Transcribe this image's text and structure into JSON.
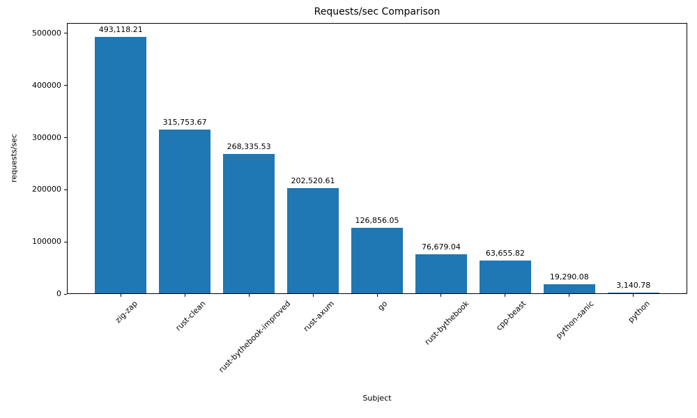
{
  "chart_data": {
    "type": "bar",
    "title": "Requests/sec Comparison",
    "xlabel": "Subject",
    "ylabel": "requests/sec",
    "categories": [
      "zig-zap",
      "rust-clean",
      "rust-bythebook-improved",
      "rust-axum",
      "go",
      "rust-bythebook",
      "cpp-beast",
      "python-sanic",
      "python"
    ],
    "values": [
      493118.21,
      315753.67,
      268335.53,
      202520.61,
      126856.05,
      76679.04,
      63655.82,
      19290.08,
      3140.78
    ],
    "value_labels": [
      "493,118.21",
      "315,753.67",
      "268,335.53",
      "202,520.61",
      "126,856.05",
      "76,679.04",
      "63,655.82",
      "19,290.08",
      "3,140.78"
    ],
    "ylim": [
      0,
      520000
    ],
    "yticks": [
      0,
      100000,
      200000,
      300000,
      400000,
      500000
    ],
    "ytick_labels": [
      "0",
      "100000",
      "200000",
      "300000",
      "400000",
      "500000"
    ],
    "grid": false,
    "legend": "none",
    "bar_color": "#1f77b4",
    "bar_width_fraction": 0.8,
    "x_tick_rotation_deg": 45
  }
}
